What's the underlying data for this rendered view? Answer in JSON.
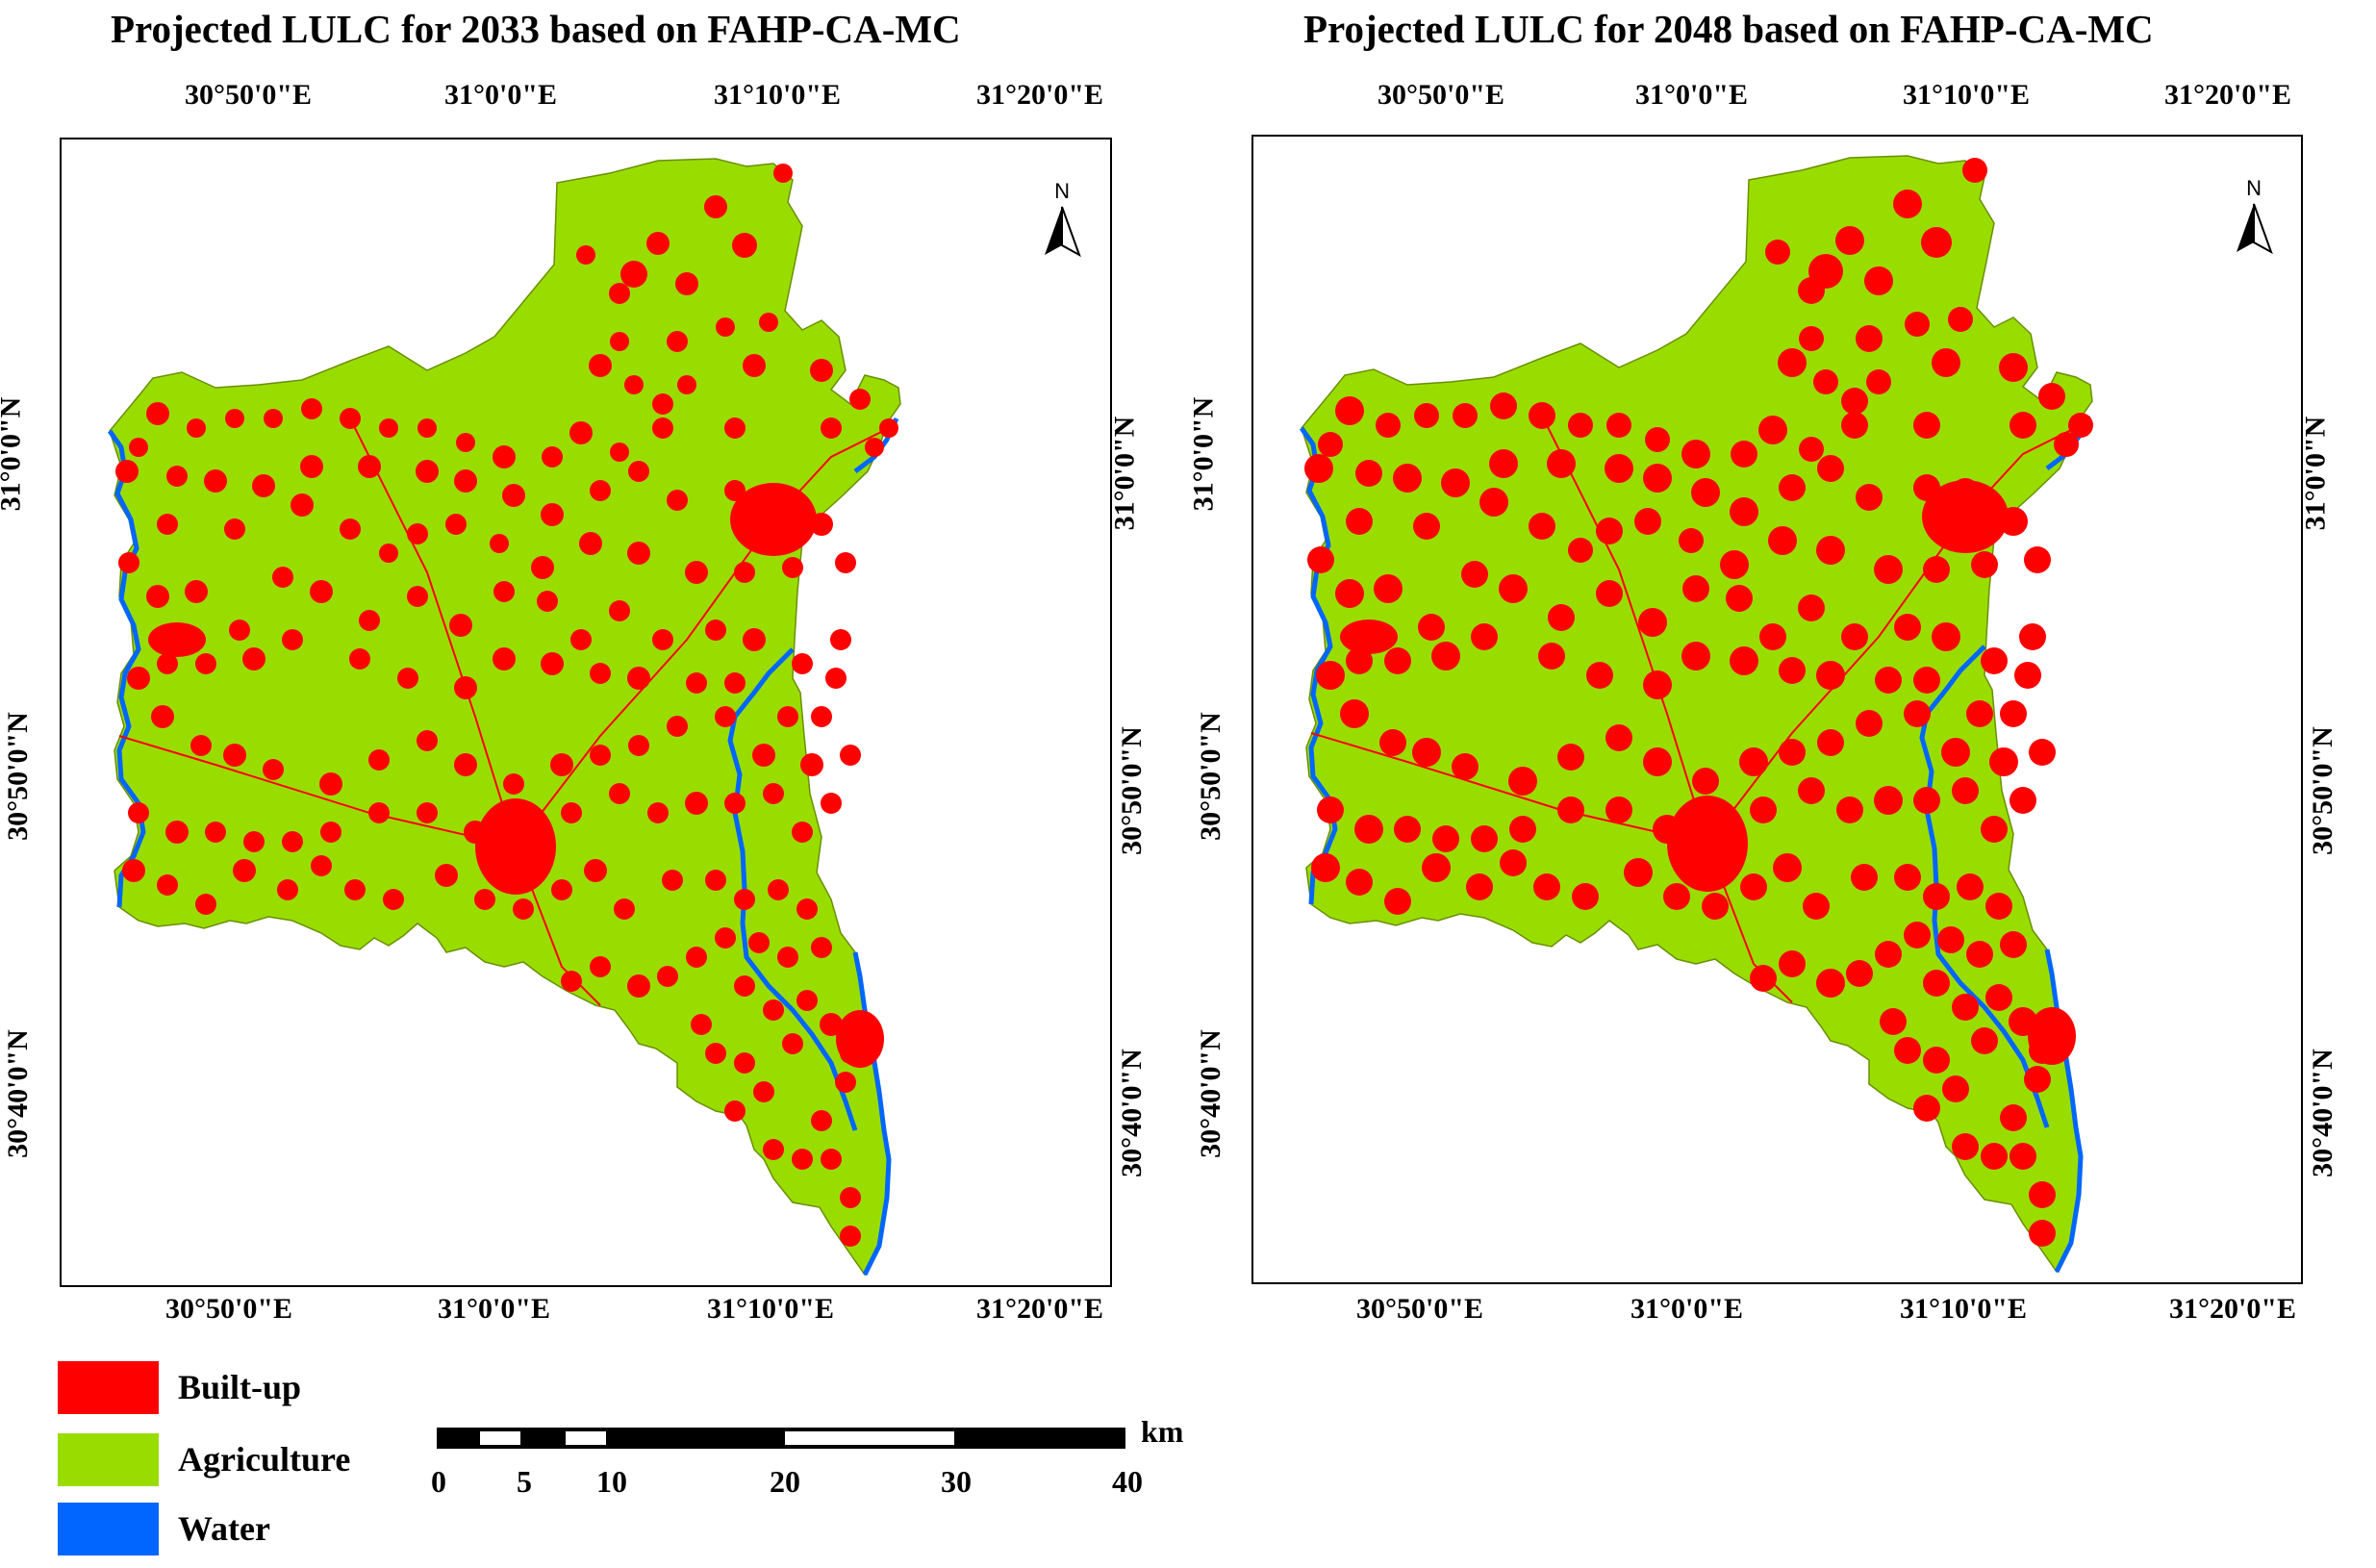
{
  "maps": [
    {
      "title": "Projected LULC for 2033 based on FAHP-CA-MC",
      "year": 2033
    },
    {
      "title": "Projected LULC for 2048 based on FAHP-CA-MC",
      "year": 2048
    }
  ],
  "axis_labels": {
    "lon": [
      "30°50'0\"E",
      "31°0'0\"E",
      "31°10'0\"E",
      "31°20'0\"E"
    ],
    "lat": [
      "31°0'0\"N",
      "30°50'0\"N",
      "30°40'0\"N"
    ]
  },
  "north_arrow": "N",
  "legend": [
    {
      "label": "Built-up",
      "color": "#ff0000"
    },
    {
      "label": "Agriculture",
      "color": "#99dd00"
    },
    {
      "label": "Water",
      "color": "#0066ff"
    }
  ],
  "scale_bar": {
    "unit": "km",
    "ticks": [
      "0",
      "5",
      "10",
      "20",
      "30",
      "40"
    ]
  },
  "colors": {
    "builtup": "#ff0000",
    "agriculture": "#99dd00",
    "water": "#0066ff",
    "boundary": "#6a8f00"
  }
}
